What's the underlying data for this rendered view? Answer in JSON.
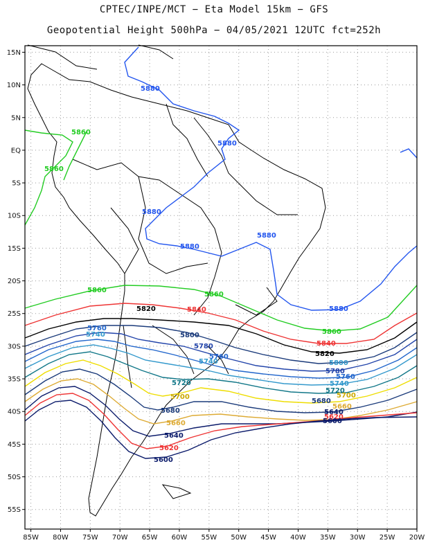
{
  "title": {
    "line1": "CPTEC/INPE/MCT −  Eta Model 15km − GFS",
    "line2": "Geopotential Height 500hPa − 04/05/2021 12UTC fct=252h"
  },
  "axes": {
    "lat_labels": [
      "15N",
      "10N",
      "5N",
      "EQ",
      "5S",
      "10S",
      "15S",
      "20S",
      "25S",
      "30S",
      "35S",
      "40S",
      "45S",
      "50S",
      "55S"
    ],
    "lat_values": [
      15,
      10,
      5,
      0,
      -5,
      -10,
      -15,
      -20,
      -25,
      -30,
      -35,
      -40,
      -45,
      -50,
      -55
    ],
    "lon_labels": [
      "85W",
      "80W",
      "75W",
      "70W",
      "65W",
      "60W",
      "55W",
      "50W",
      "45W",
      "40W",
      "35W",
      "30W",
      "25W",
      "20W"
    ],
    "lon_values": [
      -85,
      -80,
      -75,
      -70,
      -65,
      -60,
      -55,
      -50,
      -45,
      -40,
      -35,
      -30,
      -25,
      -20
    ],
    "lon_range": [
      -86,
      -20
    ],
    "lat_range": [
      -58,
      16
    ]
  },
  "contours": [
    {
      "level": "5880",
      "color": "#2255ee"
    },
    {
      "level": "5860",
      "color": "#22cc22"
    },
    {
      "level": "5840",
      "color": "#ee3333"
    },
    {
      "level": "5820",
      "color": "#000000"
    },
    {
      "level": "5800",
      "color": "#1a3a7a"
    },
    {
      "level": "5780",
      "color": "#2244aa"
    },
    {
      "level": "5760",
      "color": "#2266cc"
    },
    {
      "level": "5740",
      "color": "#3399cc"
    },
    {
      "level": "5720",
      "color": "#117788"
    },
    {
      "level": "5700",
      "color": "#eedd00"
    },
    {
      "level": "5680",
      "color": "#1a3a7a"
    },
    {
      "level": "5660",
      "color": "#ddaa33"
    },
    {
      "level": "5640",
      "color": "#0a1a6a"
    },
    {
      "level": "5620",
      "color": "#ee3333"
    },
    {
      "level": "5600",
      "color": "#0a1a6a"
    }
  ]
}
